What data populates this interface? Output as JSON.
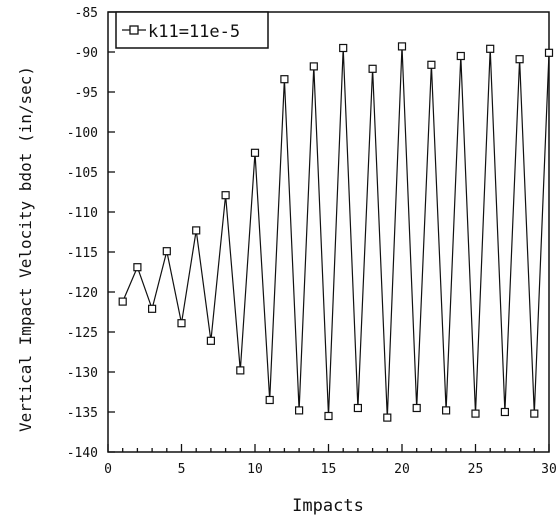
{
  "chart_data": {
    "type": "line",
    "title": "",
    "xlabel": "Impacts",
    "ylabel": "Vertical Impact Velocity bdot (in/sec)",
    "xlim": [
      0,
      30
    ],
    "ylim": [
      -140,
      -85
    ],
    "xticks": [
      0,
      5,
      10,
      15,
      20,
      25,
      30
    ],
    "yticks": [
      -85,
      -90,
      -95,
      -100,
      -105,
      -110,
      -115,
      -120,
      -125,
      -130,
      -135,
      -140
    ],
    "grid": false,
    "legend_position": "top-left",
    "series": [
      {
        "name": "k11=11e-5",
        "marker": "square",
        "color": "#111111",
        "x": [
          1,
          2,
          3,
          4,
          5,
          6,
          7,
          8,
          9,
          10,
          11,
          12,
          13,
          14,
          15,
          16,
          17,
          18,
          19,
          20,
          21,
          22,
          23,
          24,
          25,
          26,
          27,
          28,
          29,
          30
        ],
        "y": [
          -121.2,
          -116.9,
          -122.1,
          -114.9,
          -123.9,
          -112.3,
          -126.1,
          -107.9,
          -129.8,
          -102.6,
          -133.5,
          -93.4,
          -134.8,
          -91.8,
          -135.5,
          -89.5,
          -134.5,
          -92.1,
          -135.7,
          -89.3,
          -134.5,
          -91.6,
          -134.8,
          -90.5,
          -135.2,
          -89.6,
          -135.0,
          -90.9,
          -135.2,
          -90.1
        ]
      }
    ]
  }
}
